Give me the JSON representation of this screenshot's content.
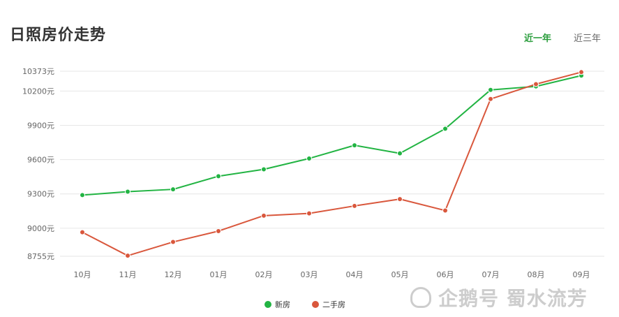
{
  "header": {
    "title": "日照房价走势",
    "tabs": [
      {
        "label": "近一年",
        "active": true
      },
      {
        "label": "近三年",
        "active": false
      }
    ]
  },
  "chart_data": {
    "type": "line",
    "title": "日照房价走势",
    "xlabel": "",
    "ylabel": "",
    "categories": [
      "10月",
      "11月",
      "12月",
      "01月",
      "02月",
      "03月",
      "04月",
      "05月",
      "06月",
      "07月",
      "08月",
      "09月"
    ],
    "y_ticks": [
      {
        "value": 8755,
        "label": "8755元"
      },
      {
        "value": 9000,
        "label": "9000元"
      },
      {
        "value": 9300,
        "label": "9300元"
      },
      {
        "value": 9600,
        "label": "9600元"
      },
      {
        "value": 9900,
        "label": "9900元"
      },
      {
        "value": 10200,
        "label": "10200元"
      },
      {
        "value": 10373,
        "label": "10373元"
      }
    ],
    "ylim": [
      8755,
      10373
    ],
    "grid": true,
    "legend_position": "bottom-center",
    "series": [
      {
        "name": "新房",
        "color": "#22b443",
        "values": [
          9290,
          9320,
          9340,
          9455,
          9515,
          9610,
          9725,
          9655,
          9870,
          10210,
          10240,
          10335
        ]
      },
      {
        "name": "二手房",
        "color": "#d9573c",
        "values": [
          8965,
          8760,
          8880,
          8975,
          9110,
          9130,
          9195,
          9255,
          9155,
          10130,
          10260,
          10365
        ]
      }
    ]
  },
  "watermark": "企鹅号 蜀水流芳"
}
